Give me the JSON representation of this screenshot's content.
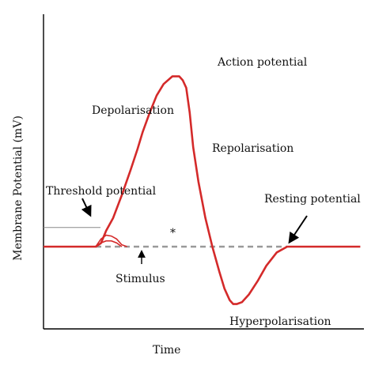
{
  "chart_data": {
    "type": "line",
    "title": "",
    "xlabel": "Time",
    "ylabel": "Membrane Potential (mV)",
    "grid": false,
    "colors": {
      "trace": "#d42a2a",
      "subthreshold": "#d42a2a",
      "baseline_dashed": "#999999",
      "threshold_line": "#8a8a8a",
      "axes": "#000000",
      "arrows": "#000000"
    },
    "series": [
      {
        "name": "",
        "x": [
          0,
          30,
          33,
          36,
          40,
          45,
          50,
          54,
          57,
          61,
          65,
          69,
          74,
          78,
          80,
          82,
          84,
          86,
          89,
          93,
          97,
          101,
          104,
          107,
          109,
          111,
          114,
          118,
          123,
          128,
          134,
          140,
          144,
          148,
          152,
          160,
          168,
          182
        ],
        "y": [
          0,
          0,
          2,
          9.2,
          16.5,
          29.7,
          44,
          56.1,
          66,
          77,
          86.9,
          93.5,
          97.9,
          97.9,
          95.7,
          91.3,
          77,
          57.2,
          37.4,
          16.5,
          0,
          -14.3,
          -24.2,
          -30.8,
          -33,
          -33,
          -31.9,
          -27.5,
          -19.8,
          -11,
          -3.3,
          0,
          0,
          0,
          0,
          0,
          0,
          0
        ]
      }
    ],
    "subthreshold_bumps": [
      {
        "x": [
          30,
          33,
          36,
          39,
          42,
          45,
          48
        ],
        "y": [
          0,
          4.4,
          6.6,
          6.1,
          4.4,
          1.1,
          0
        ]
      },
      {
        "x": [
          30,
          33,
          36,
          39,
          42,
          45
        ],
        "y": [
          0,
          2.2,
          3.3,
          3.3,
          2.2,
          0
        ]
      }
    ],
    "threshold_level": 11,
    "xlim": [
      0,
      184
    ],
    "ylim": [
      -38,
      106
    ],
    "annotations": {
      "action_potential": "Action potential",
      "depolarisation": "Depolarisation",
      "repolarisation": "Repolarisation",
      "threshold_potential": "Threshold potential",
      "resting_potential": "Resting potential",
      "stimulus": "Stimulus",
      "hyperpolarisation": "Hyperpolarisation",
      "asterisk": "*"
    }
  }
}
